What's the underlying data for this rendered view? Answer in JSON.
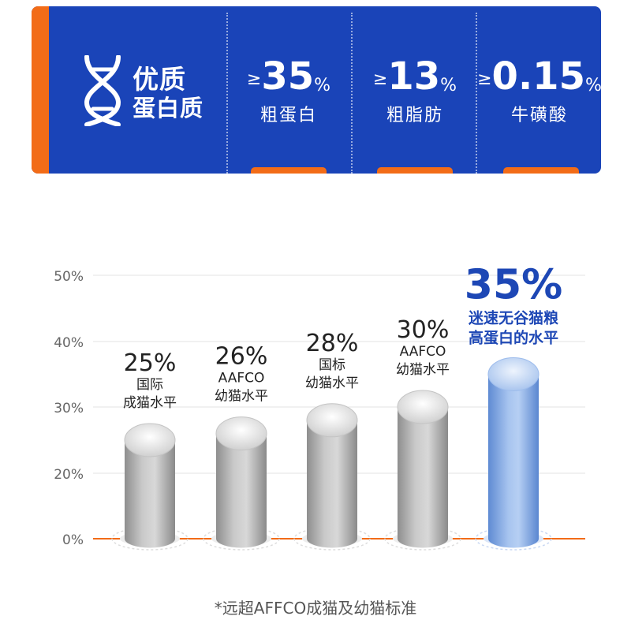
{
  "banner": {
    "quality_line1": "优质",
    "quality_line2": "蛋白质",
    "icon": "dna-icon",
    "metrics": [
      {
        "ge": "≥",
        "value": "35",
        "unit": "%",
        "label": "粗蛋白"
      },
      {
        "ge": "≥",
        "value": "13",
        "unit": "%",
        "label": "粗脂肪"
      },
      {
        "ge": "≥",
        "value": "0.15",
        "unit": "%",
        "label": "牛磺酸"
      }
    ],
    "colors": {
      "background": "#1a44b8",
      "accent": "#f26c18"
    }
  },
  "chart_data": {
    "type": "bar",
    "title": "",
    "xlabel": "",
    "ylabel": "",
    "ylim": [
      0,
      50
    ],
    "yticks": [
      "0%",
      "20%",
      "30%",
      "40%",
      "50%"
    ],
    "ytick_values": [
      0,
      20,
      30,
      40,
      50
    ],
    "grid": true,
    "values": [
      25,
      26,
      28,
      30,
      35
    ],
    "value_labels": [
      "25%",
      "26%",
      "28%",
      "30%",
      "35%"
    ],
    "categories": [
      [
        "国际",
        "成猫水平"
      ],
      [
        "AAFCO",
        "幼猫水平"
      ],
      [
        "国标",
        "幼猫水平"
      ],
      [
        "AAFCO",
        "幼猫水平"
      ],
      [
        "迷速无谷猫粮",
        "高蛋白的水平"
      ]
    ],
    "highlight_index": 4,
    "colors": {
      "bar": "#b3b3b3",
      "highlight": "#7ea6e0",
      "highlight_text": "#1d47b5",
      "baseline": "#f26c18"
    }
  },
  "footnote": "*远超AFFCO成猫及幼猫标准"
}
